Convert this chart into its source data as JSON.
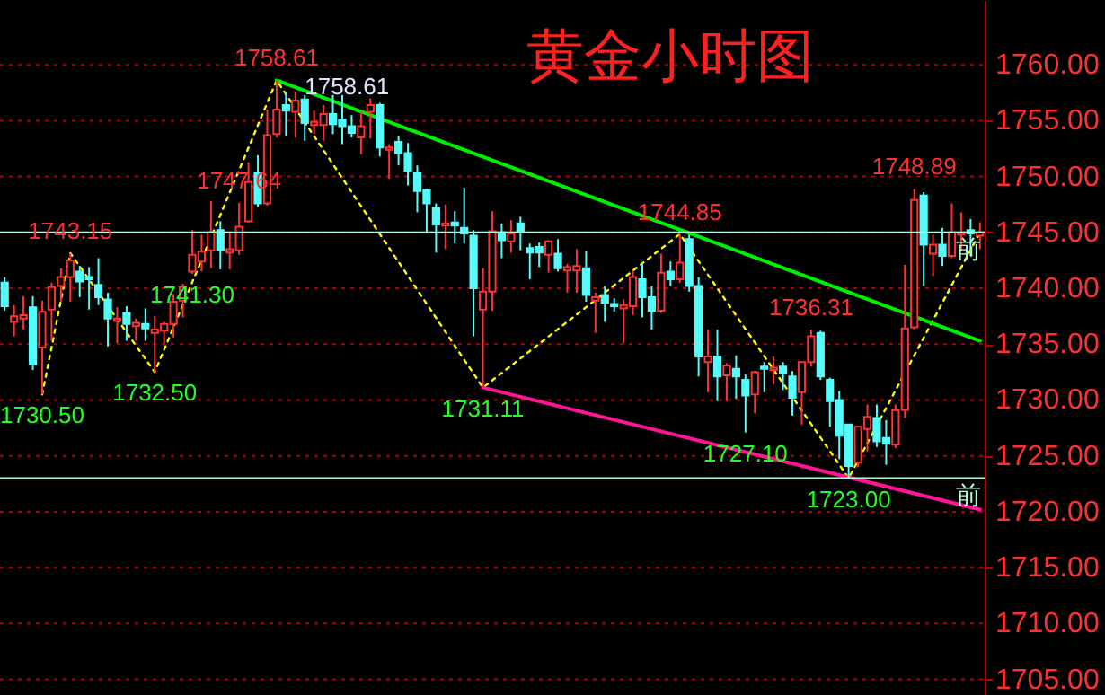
{
  "chart_data": {
    "type": "candlestick",
    "title": "黄金小时图",
    "categories": [
      null,
      null,
      null,
      null,
      null,
      null,
      null,
      null,
      null,
      null,
      null,
      null,
      null,
      null,
      null,
      null,
      null,
      null,
      null,
      null,
      null,
      null,
      null,
      null,
      null,
      null,
      null,
      null,
      null,
      null,
      null,
      null,
      null,
      null,
      null,
      null,
      null,
      null,
      null,
      null,
      null,
      null,
      null,
      null,
      null,
      null,
      null,
      null,
      null,
      null,
      null,
      null,
      null,
      null,
      null,
      null,
      null,
      null,
      null,
      null,
      null,
      null,
      null,
      null,
      null,
      null,
      null,
      null,
      null,
      null,
      null,
      null,
      null,
      null,
      null,
      null,
      null,
      null,
      null,
      null,
      null,
      null,
      null,
      null,
      null,
      null,
      null,
      null,
      null,
      null,
      null,
      null,
      null,
      null,
      null,
      null,
      null,
      null,
      null,
      null,
      null,
      null,
      null,
      null,
      null
    ],
    "ohlc": [
      [
        1740.5,
        1741.0,
        1738.0,
        1738.4
      ],
      [
        1737.0,
        1738.5,
        1735.7,
        1737.5
      ],
      [
        1737.3,
        1739.3,
        1736.3,
        1737.6
      ],
      [
        1738.3,
        1739.3,
        1732.7,
        1733.2
      ],
      [
        1734.7,
        1738.9,
        1730.5,
        1737.9
      ],
      [
        1738.1,
        1740.5,
        1735.3,
        1740.1
      ],
      [
        1740.2,
        1741.8,
        1738.8,
        1741.0
      ],
      [
        1741.0,
        1743.15,
        1738.8,
        1742.5
      ],
      [
        1741.5,
        1742.0,
        1739.2,
        1740.6
      ],
      [
        1741.0,
        1741.9,
        1738.1,
        1740.8
      ],
      [
        1740.3,
        1742.7,
        1738.5,
        1739.2
      ],
      [
        1739.0,
        1739.6,
        1734.8,
        1737.3
      ],
      [
        1737.1,
        1738.3,
        1735.1,
        1737.3
      ],
      [
        1737.8,
        1738.4,
        1735.3,
        1736.8
      ],
      [
        1736.6,
        1737.3,
        1735.3,
        1736.9
      ],
      [
        1736.8,
        1738.2,
        1735.3,
        1736.4
      ],
      [
        1736.0,
        1737.5,
        1732.5,
        1736.3
      ],
      [
        1736.2,
        1737.0,
        1735.0,
        1736.8
      ],
      [
        1736.8,
        1739.5,
        1735.6,
        1738.8
      ],
      [
        1738.9,
        1740.4,
        1737.4,
        1740.1
      ],
      [
        1741.5,
        1745.2,
        1741.3,
        1743.0
      ],
      [
        1742.4,
        1744.8,
        1741.5,
        1743.3
      ],
      [
        1743.4,
        1747.8,
        1741.8,
        1745.0
      ],
      [
        1745.2,
        1746.0,
        1741.7,
        1743.4
      ],
      [
        1743.2,
        1745.1,
        1741.7,
        1743.5
      ],
      [
        1743.4,
        1747.64,
        1743.0,
        1745.5
      ],
      [
        1746.0,
        1751.3,
        1745.9,
        1749.5
      ],
      [
        1750.3,
        1751.9,
        1747.3,
        1747.6
      ],
      [
        1747.6,
        1756.0,
        1747.4,
        1753.7
      ],
      [
        1753.8,
        1758.61,
        1753.5,
        1756.0
      ],
      [
        1756.4,
        1757.6,
        1753.6,
        1755.9
      ],
      [
        1755.8,
        1757.6,
        1753.5,
        1756.8
      ],
      [
        1756.9,
        1757.3,
        1753.2,
        1754.8
      ],
      [
        1754.6,
        1755.9,
        1753.8,
        1754.9
      ],
      [
        1754.6,
        1756.4,
        1753.2,
        1755.6
      ],
      [
        1755.6,
        1757.3,
        1753.8,
        1754.7
      ],
      [
        1755.1,
        1757.3,
        1752.9,
        1754.5
      ],
      [
        1754.5,
        1755.5,
        1753.5,
        1753.9
      ],
      [
        1753.5,
        1755.8,
        1752.0,
        1754.5
      ],
      [
        1755.8,
        1757.0,
        1753.4,
        1756.4
      ],
      [
        1756.4,
        1756.6,
        1751.8,
        1752.6
      ],
      [
        1752.4,
        1752.9,
        1749.8,
        1752.6
      ],
      [
        1753.1,
        1753.6,
        1751.0,
        1752.1
      ],
      [
        1752.1,
        1753.0,
        1749.2,
        1750.5
      ],
      [
        1750.3,
        1751.0,
        1746.8,
        1748.7
      ],
      [
        1748.8,
        1748.9,
        1744.9,
        1747.6
      ],
      [
        1747.2,
        1747.6,
        1743.2,
        1745.7
      ],
      [
        1745.6,
        1747.5,
        1743.5,
        1745.8
      ],
      [
        1745.9,
        1746.9,
        1744.0,
        1745.6
      ],
      [
        1745.4,
        1749.0,
        1744.0,
        1744.9
      ],
      [
        1744.7,
        1745.2,
        1735.7,
        1740.0
      ],
      [
        1738.1,
        1741.8,
        1731.11,
        1739.7
      ],
      [
        1739.7,
        1746.9,
        1738.0,
        1745.1
      ],
      [
        1745.0,
        1745.8,
        1742.7,
        1744.3
      ],
      [
        1744.2,
        1746.1,
        1743.2,
        1744.9
      ],
      [
        1745.8,
        1746.4,
        1743.4,
        1745.1
      ],
      [
        1743.6,
        1744.0,
        1740.8,
        1743.2
      ],
      [
        1743.7,
        1744.1,
        1741.9,
        1743.2
      ],
      [
        1743.0,
        1744.3,
        1741.4,
        1744.2
      ],
      [
        1743.1,
        1744.4,
        1741.5,
        1741.8
      ],
      [
        1741.6,
        1742.2,
        1739.6,
        1741.9
      ],
      [
        1741.6,
        1743.5,
        1739.6,
        1742.0
      ],
      [
        1741.8,
        1743.3,
        1738.8,
        1739.4
      ],
      [
        1738.9,
        1739.6,
        1736.0,
        1739.2
      ],
      [
        1739.4,
        1740.2,
        1737.0,
        1738.7
      ],
      [
        1738.6,
        1739.1,
        1737.9,
        1738.4
      ],
      [
        1738.2,
        1739.0,
        1735.1,
        1738.5
      ],
      [
        1738.4,
        1741.6,
        1737.6,
        1741.0
      ],
      [
        1740.8,
        1742.3,
        1737.4,
        1739.2
      ],
      [
        1739.2,
        1740.2,
        1736.3,
        1738.0
      ],
      [
        1738.0,
        1743.1,
        1737.8,
        1741.4
      ],
      [
        1741.5,
        1742.4,
        1740.2,
        1740.8
      ],
      [
        1740.8,
        1744.85,
        1740.5,
        1742.3
      ],
      [
        1744.4,
        1744.8,
        1739.7,
        1740.2
      ],
      [
        1740.2,
        1741.0,
        1732.1,
        1733.9
      ],
      [
        1733.4,
        1736.3,
        1730.7,
        1733.9
      ],
      [
        1733.9,
        1736.3,
        1729.9,
        1732.1
      ],
      [
        1732.2,
        1733.3,
        1729.9,
        1733.1
      ],
      [
        1732.8,
        1734.0,
        1730.1,
        1732.1
      ],
      [
        1731.8,
        1732.3,
        1727.1,
        1730.4
      ],
      [
        1730.5,
        1732.6,
        1728.8,
        1732.5
      ],
      [
        1733.0,
        1733.4,
        1730.7,
        1732.8
      ],
      [
        1732.7,
        1733.9,
        1731.4,
        1732.9
      ],
      [
        1733.0,
        1733.4,
        1730.9,
        1732.4
      ],
      [
        1732.1,
        1732.6,
        1728.6,
        1730.2
      ],
      [
        1730.7,
        1733.4,
        1727.8,
        1733.4
      ],
      [
        1733.4,
        1736.31,
        1733.0,
        1735.7
      ],
      [
        1736.0,
        1736.2,
        1731.8,
        1732.1
      ],
      [
        1731.8,
        1732.0,
        1727.6,
        1729.9
      ],
      [
        1730.0,
        1730.8,
        1724.7,
        1726.8
      ],
      [
        1727.8,
        1727.8,
        1723.0,
        1724.1
      ],
      [
        1724.4,
        1727.6,
        1724.0,
        1727.6
      ],
      [
        1727.4,
        1729.6,
        1725.4,
        1728.5
      ],
      [
        1728.4,
        1729.6,
        1725.8,
        1726.3
      ],
      [
        1726.6,
        1728.2,
        1724.2,
        1726.1
      ],
      [
        1726.0,
        1729.6,
        1725.7,
        1729.1
      ],
      [
        1729.1,
        1742.1,
        1728.4,
        1736.4
      ],
      [
        1736.5,
        1748.89,
        1736.3,
        1747.9
      ],
      [
        1748.3,
        1748.6,
        1740.2,
        1743.9
      ],
      [
        1743.1,
        1744.8,
        1741.1,
        1743.9
      ],
      [
        1743.9,
        1745.4,
        1742.0,
        1742.9
      ],
      [
        1742.9,
        1747.6,
        1742.7,
        1745.0
      ],
      [
        1744.8,
        1746.8,
        1743.3,
        1745.0
      ],
      [
        1745.2,
        1746.2,
        1742.9,
        1744.9
      ],
      [
        1744.7,
        1745.9,
        1743.5,
        1745.0
      ]
    ],
    "colors": [
      "#54fcfc",
      "#ff3232",
      "#ff3232",
      "#54fcfc",
      "#ff3232",
      "#ff3232",
      "#ff3232",
      "#ff3232",
      "#54fcfc",
      "#54fcfc",
      "#54fcfc",
      "#54fcfc",
      "#ff3232",
      "#54fcfc",
      "#ff3232",
      "#54fcfc",
      "#ff3232",
      "#ff3232",
      "#ff3232",
      "#ff3232",
      "#ff3232",
      "#ff3232",
      "#ff3232",
      "#54fcfc",
      "#ff3232",
      "#ff3232",
      "#ff3232",
      "#54fcfc",
      "#ff3232",
      "#ff3232",
      "#54fcfc",
      "#ff3232",
      "#54fcfc",
      "#ff3232",
      "#ff3232",
      "#54fcfc",
      "#54fcfc",
      "#54fcfc",
      "#ff3232",
      "#ff3232",
      "#54fcfc",
      "#ff3232",
      "#54fcfc",
      "#54fcfc",
      "#54fcfc",
      "#54fcfc",
      "#54fcfc",
      "#ff3232",
      "#54fcfc",
      "#54fcfc",
      "#54fcfc",
      "#ff3232",
      "#ff3232",
      "#54fcfc",
      "#ff3232",
      "#54fcfc",
      "#54fcfc",
      "#54fcfc",
      "#ff3232",
      "#54fcfc",
      "#ff3232",
      "#ff3232",
      "#54fcfc",
      "#ff3232",
      "#54fcfc",
      "#54fcfc",
      "#ff3232",
      "#ff3232",
      "#54fcfc",
      "#54fcfc",
      "#ff3232",
      "#54fcfc",
      "#ff3232",
      "#54fcfc",
      "#54fcfc",
      "#ff3232",
      "#54fcfc",
      "#ff3232",
      "#54fcfc",
      "#54fcfc",
      "#ff3232",
      "#54fcfc",
      "#ff3232",
      "#54fcfc",
      "#54fcfc",
      "#ff3232",
      "#ff3232",
      "#54fcfc",
      "#54fcfc",
      "#54fcfc",
      "#54fcfc",
      "#ff3232",
      "#ff3232",
      "#54fcfc",
      "#54fcfc",
      "#ff3232",
      "#ff3232",
      "#ff3232",
      "#54fcfc",
      "#ff3232",
      "#54fcfc",
      "#ff3232",
      "#ff3232",
      "#54fcfc",
      "#ff3232"
    ],
    "series": [
      {
        "type": "line",
        "color": "#ffff00",
        "line_style": "dotted",
        "values": [
          null,
          null,
          null,
          null,
          1730.5,
          null,
          null,
          1743.15,
          null,
          null,
          null,
          null,
          null,
          null,
          null,
          null,
          1732.5,
          null,
          null,
          null,
          null,
          null,
          null,
          null,
          null,
          null,
          null,
          null,
          null,
          1758.61,
          null,
          null,
          null,
          null,
          null,
          null,
          null,
          null,
          null,
          null,
          null,
          null,
          null,
          null,
          null,
          null,
          null,
          null,
          null,
          null,
          null,
          1731.11,
          null,
          null,
          null,
          null,
          null,
          null,
          null,
          null,
          null,
          null,
          null,
          null,
          null,
          null,
          null,
          null,
          null,
          null,
          null,
          null,
          1744.85,
          null,
          null,
          null,
          null,
          null,
          null,
          null,
          null,
          null,
          null,
          null,
          null,
          null,
          null,
          null,
          null,
          null,
          1723.0,
          null,
          null,
          null,
          null,
          null,
          null,
          null,
          null,
          null,
          null,
          null,
          null,
          null,
          1745.0
        ]
      },
      {
        "type": "line",
        "color": "#00ee00",
        "line_style": "solid",
        "values": [
          null,
          null,
          null,
          null,
          null,
          null,
          null,
          null,
          null,
          null,
          null,
          null,
          null,
          null,
          null,
          null,
          null,
          null,
          null,
          null,
          null,
          null,
          null,
          null,
          null,
          null,
          null,
          null,
          null,
          1758.61,
          null,
          null,
          null,
          null,
          null,
          null,
          null,
          null,
          null,
          null,
          null,
          null,
          null,
          null,
          null,
          null,
          null,
          null,
          null,
          null,
          null,
          null,
          null,
          null,
          null,
          null,
          null,
          null,
          null,
          null,
          null,
          null,
          null,
          null,
          null,
          null,
          null,
          null,
          null,
          null,
          null,
          null,
          null,
          null,
          null,
          null,
          null,
          null,
          null,
          null,
          null,
          null,
          null,
          null,
          null,
          null,
          null,
          null,
          null,
          null,
          null,
          null,
          null,
          null,
          null,
          null,
          null,
          null,
          null,
          null,
          null,
          null,
          null,
          null,
          1735.3
        ]
      },
      {
        "type": "line",
        "color": "#ff1493",
        "line_style": "solid",
        "values": [
          null,
          null,
          null,
          null,
          null,
          null,
          null,
          null,
          null,
          null,
          null,
          null,
          null,
          null,
          null,
          null,
          null,
          null,
          null,
          null,
          null,
          null,
          null,
          null,
          null,
          null,
          null,
          null,
          null,
          null,
          null,
          null,
          null,
          null,
          null,
          null,
          null,
          null,
          null,
          null,
          null,
          null,
          null,
          null,
          null,
          null,
          null,
          null,
          null,
          null,
          null,
          1731.11,
          null,
          null,
          null,
          null,
          null,
          null,
          null,
          null,
          null,
          null,
          null,
          null,
          null,
          null,
          null,
          null,
          null,
          null,
          null,
          null,
          null,
          null,
          null,
          null,
          null,
          null,
          null,
          null,
          null,
          null,
          null,
          null,
          null,
          null,
          null,
          null,
          null,
          null,
          null,
          null,
          null,
          null,
          null,
          null,
          null,
          null,
          null,
          null,
          null,
          null,
          null,
          null,
          1720.2
        ]
      }
    ],
    "ref_lines": [
      {
        "axis": "y",
        "value": 1745.0,
        "label": "前",
        "color": "#a8ffd8"
      },
      {
        "axis": "y",
        "value": 1723.0,
        "label": "前",
        "color": "#a8ffd8"
      }
    ],
    "annotations": [
      "1758.61",
      "1758.61",
      {
        "text": "1743.15",
        "y": 1743.15
      },
      {
        "text": "1730.50",
        "y": 1730.5
      },
      {
        "text": "1732.50",
        "y": 1732.5
      },
      {
        "text": "1741.30",
        "y": 1741.3
      },
      {
        "text": "1747.64",
        "y": 1747.64
      },
      {
        "text": "1731.11",
        "y": 1731.11
      },
      {
        "text": "1744.85",
        "y": 1744.85
      },
      {
        "text": "1727.10",
        "y": 1727.1
      },
      {
        "text": "1736.31",
        "y": 1736.31
      },
      {
        "text": "1723.00",
        "y": 1723.0
      },
      {
        "text": "1748.89",
        "y": 1748.89
      }
    ],
    "ylim": [
      1703.6,
      1765.8
    ],
    "yticks": [
      {
        "value": 1705,
        "label": "1705.00"
      },
      {
        "value": 1710,
        "label": "1710.00"
      },
      {
        "value": 1715,
        "label": "1715.00"
      },
      {
        "value": 1720,
        "label": "1720.00"
      },
      {
        "value": 1725,
        "label": "1725.00"
      },
      {
        "value": 1730,
        "label": "1730.00"
      },
      {
        "value": 1735,
        "label": "1735.00"
      },
      {
        "value": 1740,
        "label": "1740.00"
      },
      {
        "value": 1745,
        "label": "1745.00"
      },
      {
        "value": 1750,
        "label": "1750.00"
      },
      {
        "value": 1755,
        "label": "1755.00"
      },
      {
        "value": 1760,
        "label": "1760.00"
      }
    ],
    "tick_labels": "y",
    "grid": "y"
  }
}
